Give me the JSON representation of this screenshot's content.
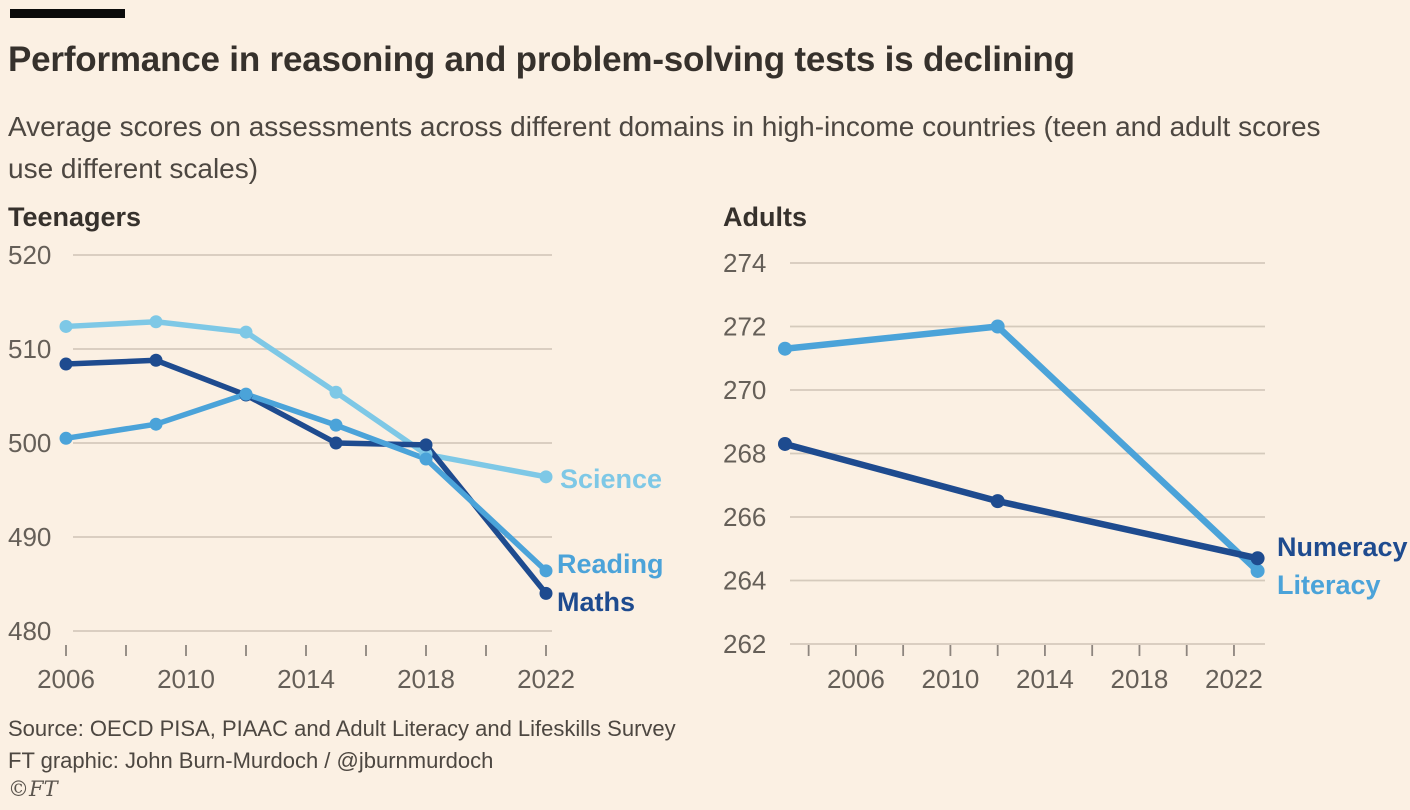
{
  "header": {
    "title": "Performance in reasoning and problem-solving tests is declining",
    "subtitle": "Average scores on assessments across different domains in high-income countries (teen and adult scores use different scales)"
  },
  "footer": {
    "source": "Source: OECD PISA, PIAAC and Adult Literacy and Lifeskills Survey",
    "credit": "FT graphic: John Burn-Murdoch / @jburnmurdoch",
    "copyright": "©FT"
  },
  "colors": {
    "background": "#FBF0E3",
    "brand_bar": "#0b0b0b",
    "title_text": "#36312C",
    "subtitle_text": "#4D4741",
    "axis_text": "#655F58",
    "gridline": "#D5CABC",
    "tick": "#8D857E",
    "science": "#7EC8E6",
    "reading": "#4BA3D9",
    "maths": "#1E4B8F",
    "numeracy": "#1E4B8F",
    "literacy": "#4BA3D9"
  },
  "chart_data": [
    {
      "id": "teenagers",
      "type": "line",
      "title": "Teenagers",
      "x": [
        2006,
        2009,
        2012,
        2015,
        2018,
        2022
      ],
      "series": [
        {
          "name": "Science",
          "color_key": "science",
          "values": [
            512.4,
            512.9,
            511.8,
            505.4,
            498.8,
            496.4
          ]
        },
        {
          "name": "Reading",
          "color_key": "reading",
          "values": [
            500.5,
            502.0,
            505.2,
            501.9,
            498.3,
            486.4
          ]
        },
        {
          "name": "Maths",
          "color_key": "maths",
          "values": [
            508.4,
            508.8,
            505.1,
            500.0,
            499.8,
            484.0
          ]
        }
      ],
      "ylim": [
        480,
        520
      ],
      "xlim": [
        2006,
        2022
      ],
      "y_ticks": [
        520,
        510,
        500,
        490,
        480
      ],
      "x_ticks": [
        2006,
        2008,
        2010,
        2012,
        2014,
        2016,
        2018,
        2020,
        2022
      ],
      "x_labels": [
        2006,
        2010,
        2014,
        2018,
        2022
      ],
      "grid": "horizontal",
      "legend_position": "end-of-line"
    },
    {
      "id": "adults",
      "type": "line",
      "title": "Adults",
      "x": [
        2003,
        2012,
        2023
      ],
      "series": [
        {
          "name": "Literacy",
          "color_key": "literacy",
          "values": [
            271.3,
            272.0,
            264.3
          ]
        },
        {
          "name": "Numeracy",
          "color_key": "numeracy",
          "values": [
            268.3,
            266.5,
            264.7
          ]
        }
      ],
      "ylim": [
        262,
        274
      ],
      "xlim": [
        2003,
        2023
      ],
      "y_ticks": [
        274,
        272,
        270,
        268,
        266,
        264,
        262
      ],
      "x_ticks": [
        2004,
        2006,
        2008,
        2010,
        2012,
        2014,
        2016,
        2018,
        2020,
        2022
      ],
      "x_labels": [
        2006,
        2010,
        2014,
        2018,
        2022
      ],
      "grid": "horizontal",
      "legend_position": "end-of-line"
    }
  ]
}
